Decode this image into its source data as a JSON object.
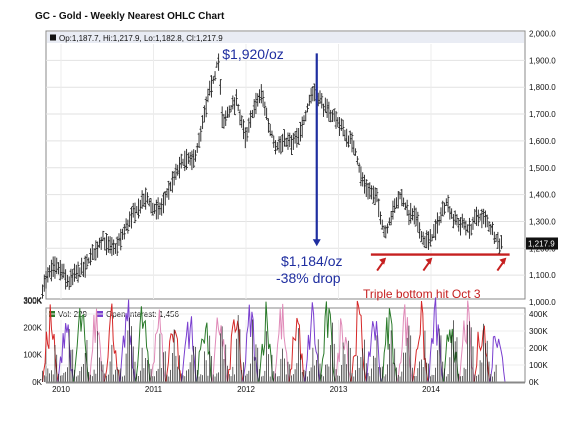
{
  "chart_data": {
    "type": "ohlc",
    "title": "GC - Gold - Weekly Nearest OHLC Chart",
    "ohlc_readout": "Op:1,187.7, Hi:1,217.9, Lo:1,182.8, Cl:1,217.9",
    "last_value": 1217.9,
    "last_value_label": "1,217.9",
    "x_ticks": [
      "2010",
      "2011",
      "2012",
      "2013",
      "2014"
    ],
    "price_axis": {
      "ylim": [
        1000,
        2000
      ],
      "ticks": [
        1000,
        1100,
        1200,
        1300,
        1400,
        1500,
        1600,
        1700,
        1800,
        1900,
        2000
      ],
      "tick_labels": [
        "1,000.0",
        "1,100.0",
        "1,200.0",
        "1,300.0",
        "1,400.0",
        "1,500.0",
        "1,600.0",
        "1,700.0",
        "1,800.0",
        "1,900.0",
        "2,000.0"
      ]
    },
    "price_path": [
      [
        2009.8,
        1055
      ],
      [
        2009.92,
        1130
      ],
      [
        2010.0,
        1120
      ],
      [
        2010.08,
        1070
      ],
      [
        2010.17,
        1110
      ],
      [
        2010.25,
        1125
      ],
      [
        2010.33,
        1170
      ],
      [
        2010.45,
        1240
      ],
      [
        2010.5,
        1210
      ],
      [
        2010.58,
        1195
      ],
      [
        2010.67,
        1250
      ],
      [
        2010.75,
        1310
      ],
      [
        2010.85,
        1360
      ],
      [
        2010.92,
        1390
      ],
      [
        2011.0,
        1340
      ],
      [
        2011.08,
        1350
      ],
      [
        2011.17,
        1420
      ],
      [
        2011.25,
        1480
      ],
      [
        2011.33,
        1530
      ],
      [
        2011.42,
        1520
      ],
      [
        2011.5,
        1600
      ],
      [
        2011.58,
        1750
      ],
      [
        2011.67,
        1850
      ],
      [
        2011.7,
        1920
      ],
      [
        2011.75,
        1650
      ],
      [
        2011.8,
        1700
      ],
      [
        2011.9,
        1750
      ],
      [
        2012.0,
        1600
      ],
      [
        2012.08,
        1720
      ],
      [
        2012.17,
        1780
      ],
      [
        2012.25,
        1650
      ],
      [
        2012.33,
        1580
      ],
      [
        2012.42,
        1600
      ],
      [
        2012.5,
        1590
      ],
      [
        2012.58,
        1620
      ],
      [
        2012.7,
        1770
      ],
      [
        2012.75,
        1790
      ],
      [
        2012.85,
        1720
      ],
      [
        2012.92,
        1700
      ],
      [
        2013.0,
        1670
      ],
      [
        2013.08,
        1620
      ],
      [
        2013.17,
        1580
      ],
      [
        2013.25,
        1460
      ],
      [
        2013.33,
        1420
      ],
      [
        2013.42,
        1380
      ],
      [
        2013.5,
        1250
      ],
      [
        2013.58,
        1330
      ],
      [
        2013.67,
        1400
      ],
      [
        2013.75,
        1330
      ],
      [
        2013.83,
        1320
      ],
      [
        2013.92,
        1230
      ],
      [
        2014.0,
        1230
      ],
      [
        2014.08,
        1300
      ],
      [
        2014.17,
        1380
      ],
      [
        2014.25,
        1300
      ],
      [
        2014.33,
        1290
      ],
      [
        2014.42,
        1270
      ],
      [
        2014.5,
        1320
      ],
      [
        2014.58,
        1310
      ],
      [
        2014.67,
        1260
      ],
      [
        2014.75,
        1215
      ],
      [
        2014.77,
        1217.9
      ]
    ],
    "volume_panel": {
      "vol_label": "Vol: 229",
      "oi_label": "Open Interest: 1,456",
      "vol_ylim": [
        0,
        300000
      ],
      "vol_ticks": [
        0,
        100000,
        200000,
        300000
      ],
      "vol_tick_labels": [
        "0K",
        "100K",
        "200K",
        "300K"
      ],
      "oi_ylim": [
        0,
        400000
      ],
      "oi_ticks": [
        0,
        100000,
        200000,
        300000,
        400000
      ],
      "oi_tick_labels": [
        "0K",
        "100K",
        "200K",
        "300K",
        "400K"
      ],
      "colors": {
        "volume": "#2a7a2a",
        "open_interest": "#7a3fcf",
        "contract_a": "#d62828",
        "contract_b": "#e08ab8",
        "bars": "#222222"
      }
    },
    "annotations": {
      "peak": {
        "text": "$1,920/oz",
        "x": 2011.7,
        "y": 1920
      },
      "current_line1": "$1,184/oz",
      "current_line2": "-38% drop",
      "arrow_top": 1915,
      "arrow_bottom": 1200,
      "arrow_x": 2012.7,
      "support_level": 1184,
      "support_x_range": [
        2013.35,
        2014.85
      ],
      "bottoms": [
        2013.45,
        2013.95,
        2014.75
      ],
      "support_text": "Triple bottom hit Oct 3"
    },
    "colors": {
      "arrow": "#1f2ea0",
      "support": "#c62020",
      "bars": "#222222"
    }
  }
}
